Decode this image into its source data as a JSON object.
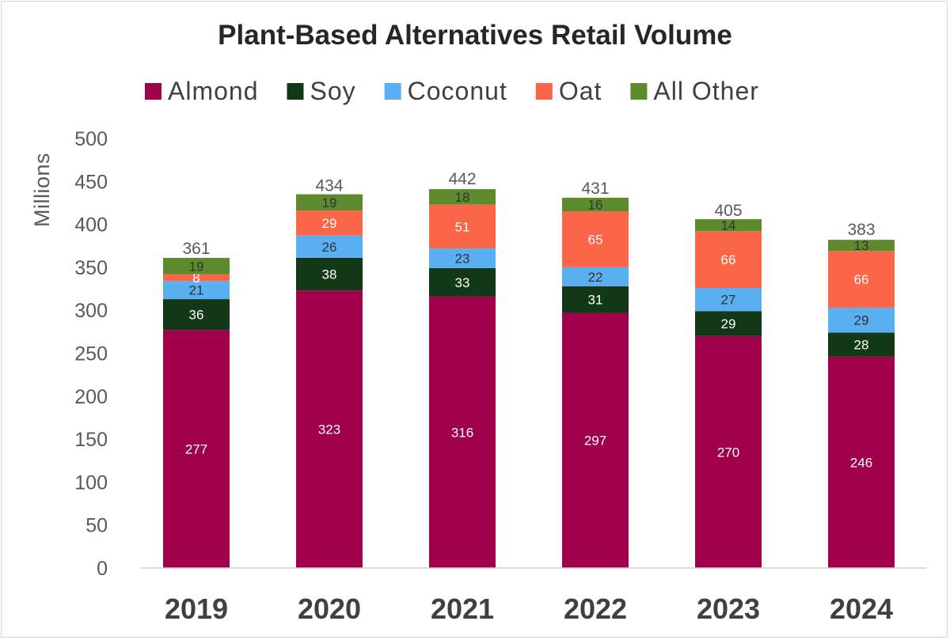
{
  "chart_data": {
    "type": "bar",
    "stacked": true,
    "title": "Plant-Based Alternatives Retail Volume",
    "xlabel": "",
    "ylabel": "Millions",
    "ylim": [
      0,
      500
    ],
    "yticks": [
      0,
      50,
      100,
      150,
      200,
      250,
      300,
      350,
      400,
      450,
      500
    ],
    "grid": false,
    "legend_position": "top",
    "categories": [
      "2019",
      "2020",
      "2021",
      "2022",
      "2023",
      "2024"
    ],
    "series": [
      {
        "name": "Almond",
        "color": "#a0004a",
        "label_color": "#ffffff",
        "values": [
          277,
          323,
          316,
          297,
          270,
          246
        ]
      },
      {
        "name": "Soy",
        "color": "#123818",
        "label_color": "#ffffff",
        "values": [
          36,
          38,
          33,
          31,
          29,
          28
        ]
      },
      {
        "name": "Coconut",
        "color": "#5aaff0",
        "label_color": "#333333",
        "values": [
          21,
          26,
          23,
          22,
          27,
          29
        ]
      },
      {
        "name": "Oat",
        "color": "#fb6548",
        "label_color": "#ffffff",
        "values": [
          8,
          29,
          51,
          65,
          66,
          66
        ]
      },
      {
        "name": "All Other",
        "color": "#5e8a2e",
        "label_color": "#333333",
        "values": [
          19,
          19,
          18,
          16,
          14,
          13
        ]
      }
    ],
    "totals": [
      361,
      434,
      442,
      431,
      405,
      383
    ]
  }
}
